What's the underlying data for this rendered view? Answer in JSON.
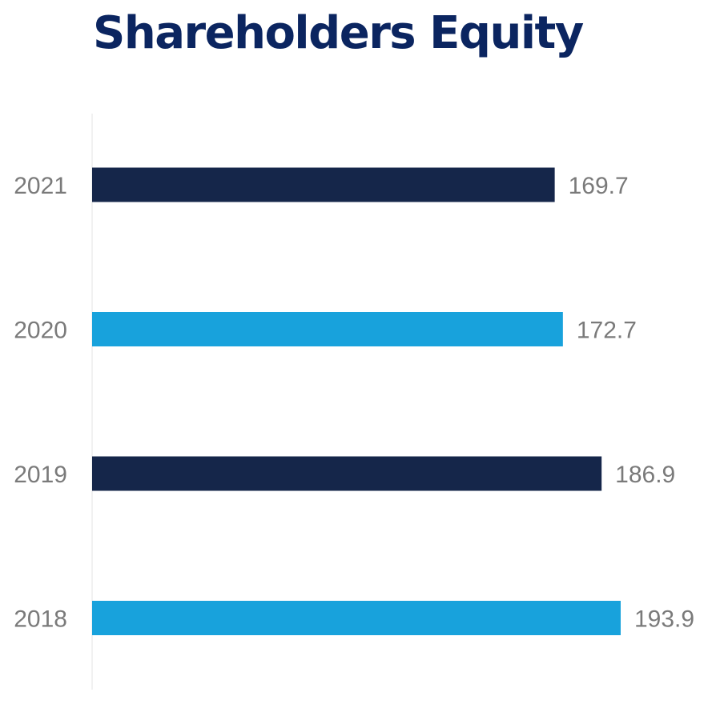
{
  "chart_data": {
    "type": "bar",
    "orientation": "horizontal",
    "title": "Shareholders Equity",
    "categories": [
      "2021",
      "2020",
      "2019",
      "2018"
    ],
    "values": [
      169.7,
      172.7,
      186.9,
      193.9
    ],
    "value_labels": [
      "169.7",
      "172.7",
      "186.9",
      "193.9"
    ],
    "colors": [
      "#15264a",
      "#18a2dc",
      "#15264a",
      "#18a2dc"
    ],
    "axis_color": "#e3e3e3",
    "xlim": [
      0,
      200
    ],
    "grid": false,
    "legend": "none"
  }
}
